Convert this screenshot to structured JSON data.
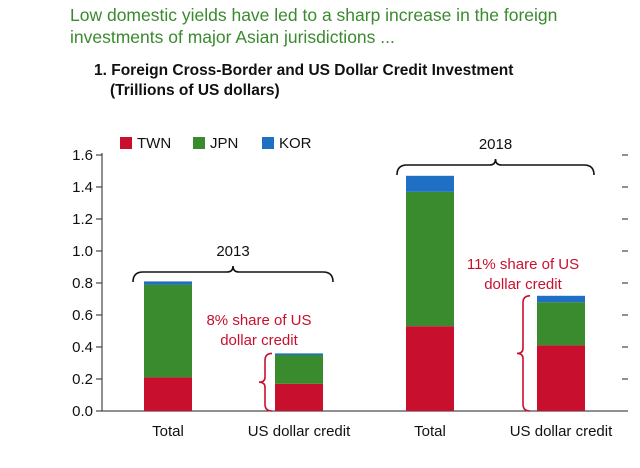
{
  "headline": "Low domestic yields have led to a sharp increase in the foreign investments of major Asian jurisdictions ...",
  "chart_data": {
    "type": "bar",
    "stacked": true,
    "title": "1. Foreign Cross-Border and US Dollar Credit Investment",
    "subtitle": "(Trillions of US dollars)",
    "categories": [
      "Total",
      "US dollar credit",
      "Total",
      "US dollar credit"
    ],
    "groups": [
      {
        "label": "2013",
        "categories": [
          0,
          1
        ]
      },
      {
        "label": "2018",
        "categories": [
          2,
          3
        ]
      }
    ],
    "series": [
      {
        "name": "TWN",
        "color": "#c8102e",
        "values": [
          0.21,
          0.17,
          0.53,
          0.41
        ]
      },
      {
        "name": "JPN",
        "color": "#3a8a2e",
        "values": [
          0.58,
          0.18,
          0.84,
          0.27
        ]
      },
      {
        "name": "KOR",
        "color": "#1f6fc5",
        "values": [
          0.02,
          0.01,
          0.1,
          0.04
        ]
      }
    ],
    "annotations": [
      {
        "text_lines": [
          "8% share of US",
          "dollar credit"
        ],
        "color": "#c8102e",
        "target": 1
      },
      {
        "text_lines": [
          "11% share of US",
          "dollar credit"
        ],
        "color": "#c8102e",
        "target": 3
      }
    ],
    "ylim": [
      0,
      1.6
    ],
    "yticks": [
      "0.0",
      "0.2",
      "0.4",
      "0.6",
      "0.8",
      "1.0",
      "1.2",
      "1.4",
      "1.6"
    ],
    "legend_position": "top-left",
    "grid": false
  }
}
